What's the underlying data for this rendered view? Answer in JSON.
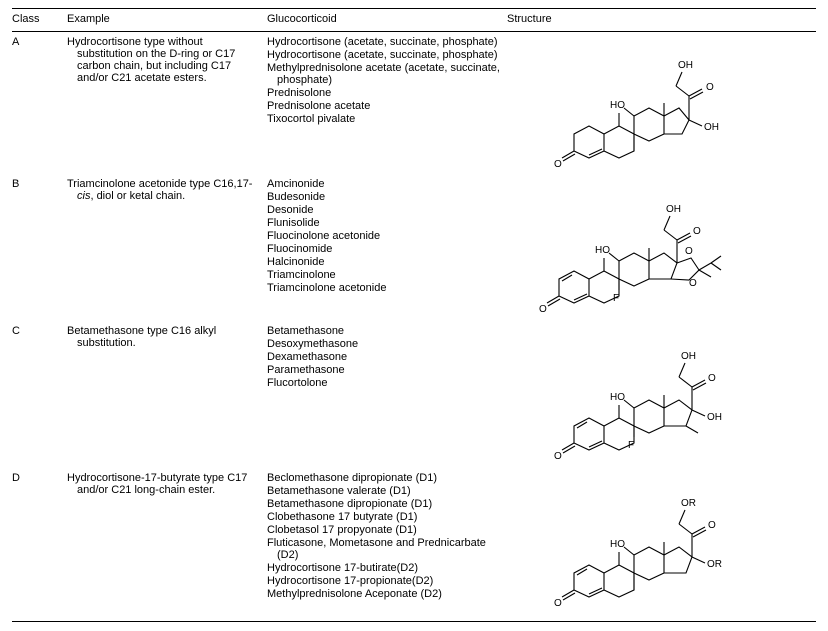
{
  "headers": {
    "class": "Class",
    "example": "Example",
    "gluco": "Glucocorticoid",
    "structure": "Structure"
  },
  "rows": [
    {
      "class": "A",
      "example": "Hydrocortisone type without substitution on the D-ring or C17 carbon chain, but including C17 and/or C21 acetate esters.",
      "gluco": [
        "Hydrocortisone (acetate, succinate, phosphate)",
        "Hydrocortisone (acetate, succinate, phosphate)",
        "Methylprednisolone acetate (acetate, succinate, phosphate)",
        "Prednisolone",
        "Prednisolone acetate",
        "Tixocortol pivalate"
      ]
    },
    {
      "class": "B",
      "example_html": "Triamcinolone acetonide type C16,17-<em class='cis'>cis</em>, diol or ketal chain.",
      "gluco": [
        "Amcinonide",
        "Budesonide",
        "Desonide",
        "Flunisolide",
        "Fluocinolone acetonide",
        "Fluocinomide",
        "Halcinonide",
        "Triamcinolone",
        "Triamcinolone acetonide"
      ]
    },
    {
      "class": "C",
      "example": "Betamethasone type C16 alkyl substitution.",
      "gluco": [
        "Betamethasone",
        "Desoxymethasone",
        "Dexamethasone",
        "Paramethasone",
        "Flucortolone"
      ]
    },
    {
      "class": "D",
      "example": "Hydrocortisone-17-butyrate type C17 and/or C21 long-chain ester.",
      "gluco": [
        "Beclomethasone dipropionate (D1)",
        "Betamethasone valerate (D1)",
        "Betamethasone dipropionate (D1)",
        "Clobethasone 17 butyrate (D1)",
        "Clobetasol 17 propyonate (D1)",
        "Fluticasone, Mometasone and Prednicarbate (D2)",
        "Hydrocortisone 17-butirate(D2)",
        "Hydrocortisone 17-propionate(D2)",
        "Methylprednisolone Aceponate (D2)"
      ]
    }
  ],
  "structure_labels": {
    "OH": "OH",
    "O": "O",
    "HO": "HO",
    "F": "F",
    "OR": "OR"
  },
  "style": {
    "stroke": "#000000",
    "stroke_width": 1.1,
    "font_size_mol": 10
  }
}
